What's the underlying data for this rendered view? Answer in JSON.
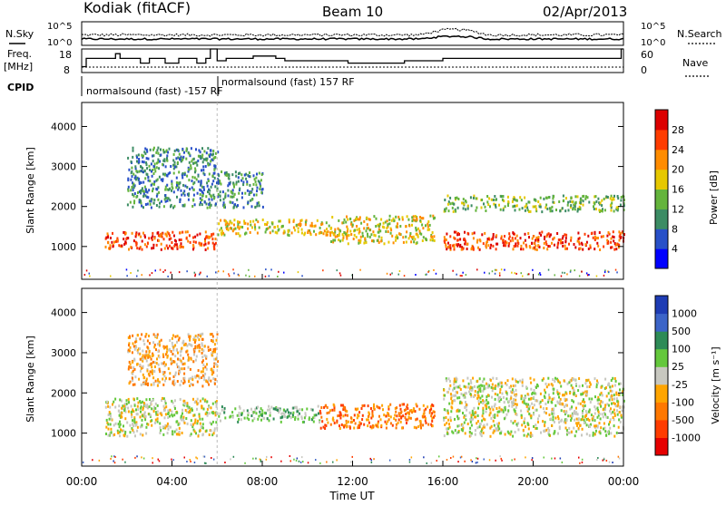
{
  "header": {
    "station": "Kodiak (fitACF)",
    "beam": "Beam 10",
    "date": "02/Apr/2013"
  },
  "summary": {
    "nsky_label": "N.Sky",
    "nsky_ticks": [
      "10^5",
      "10^0"
    ],
    "nsearch_label": "N.Search",
    "nsearch_ticks": [
      "10^5",
      "10^0"
    ],
    "freq_label": "Freq.",
    "freq_unit": "[MHz]",
    "freq_ticks": [
      "18",
      "8"
    ],
    "nave_label": "Nave",
    "nave_ticks": [
      "60",
      "0"
    ],
    "cpid_label": "CPID",
    "cpid_entries": [
      "normalsound (fast) -157 RF",
      "normalsound (fast) 157 RF"
    ],
    "freq_series_hours": [
      0,
      0.2,
      1.3,
      1.5,
      1.7,
      2.5,
      2.6,
      3.0,
      3.5,
      3.7,
      4.2,
      4.3,
      5.0,
      5.1,
      5.4,
      5.5,
      5.7,
      6.0,
      6.4,
      7.5,
      7.6,
      8.6,
      9.0,
      11.6,
      11.8,
      14.0,
      14.3,
      15.7,
      16.0,
      23.8,
      23.9,
      24
    ],
    "freq_series_mhz": [
      10.5,
      14,
      14,
      16,
      14,
      14,
      12,
      14,
      14,
      12,
      12,
      14,
      14,
      12,
      12,
      14,
      18,
      13,
      14,
      14,
      15,
      14,
      13,
      13,
      12,
      12,
      13,
      13,
      14,
      14,
      18,
      18
    ]
  },
  "chart_data": [
    {
      "type": "heatmap",
      "panel": "power",
      "ylabel": "Slant Range [km]",
      "xlim": [
        0,
        24
      ],
      "ylim": [
        180,
        4600
      ],
      "y_ticks": [
        1000,
        2000,
        3000,
        4000
      ],
      "colorbar_label": "Power [dB]",
      "colorbar_ticks": [
        4,
        8,
        12,
        16,
        20,
        24,
        28
      ],
      "colorbar_colors": [
        "#0000ff",
        "#2850c8",
        "#3c8c64",
        "#64b43c",
        "#e6c800",
        "#ff8c00",
        "#ff3c00",
        "#dc0000"
      ],
      "regions": [
        {
          "x": [
            1.0,
            6.0
          ],
          "y": [
            950,
            1400
          ],
          "level": 6
        },
        {
          "x": [
            6.0,
            11.0
          ],
          "y": [
            1300,
            1700
          ],
          "level": 4
        },
        {
          "x": [
            11.0,
            15.6
          ],
          "y": [
            1100,
            1800
          ],
          "level": 4
        },
        {
          "x": [
            16.0,
            24.0
          ],
          "y": [
            950,
            1400
          ],
          "level": 6
        },
        {
          "x": [
            2.0,
            6.0
          ],
          "y": [
            2000,
            3500
          ],
          "level": 2
        },
        {
          "x": [
            16.0,
            24.0
          ],
          "y": [
            1900,
            2300
          ],
          "level": 3
        },
        {
          "x": [
            6.0,
            8.0
          ],
          "y": [
            2000,
            2900
          ],
          "level": 2
        }
      ]
    },
    {
      "type": "heatmap",
      "panel": "velocity",
      "ylabel": "Slant Range [km]",
      "xlabel": "Time UT",
      "x_ticks": [
        "00:00",
        "04:00",
        "08:00",
        "12:00",
        "16:00",
        "20:00",
        "00:00"
      ],
      "xlim": [
        0,
        24
      ],
      "ylim": [
        180,
        4600
      ],
      "y_ticks": [
        1000,
        2000,
        3000,
        4000
      ],
      "colorbar_label": "Velocity [m s⁻¹]",
      "colorbar_ticks": [
        "1000",
        "500",
        "100",
        "25",
        "-25",
        "-100",
        "-500",
        "-1000"
      ],
      "colorbar_colors": [
        "#1e3cb4",
        "#3c64c8",
        "#2e8b57",
        "#64c83c",
        "#c8c8c0",
        "#ffa500",
        "#ff7800",
        "#ff3c00",
        "#e60000"
      ],
      "regions": [
        {
          "x": [
            1.0,
            6.0
          ],
          "y": [
            950,
            1900
          ],
          "level": 4
        },
        {
          "x": [
            6.0,
            10.5
          ],
          "y": [
            1300,
            1700
          ],
          "level": 3
        },
        {
          "x": [
            10.5,
            15.6
          ],
          "y": [
            1150,
            1750
          ],
          "level": 6
        },
        {
          "x": [
            16.0,
            24.0
          ],
          "y": [
            950,
            2000
          ],
          "level": 4
        },
        {
          "x": [
            2.0,
            6.0
          ],
          "y": [
            2200,
            3500
          ],
          "level": 5
        },
        {
          "x": [
            16.0,
            24.0
          ],
          "y": [
            2000,
            2400
          ],
          "level": 4
        }
      ]
    }
  ]
}
